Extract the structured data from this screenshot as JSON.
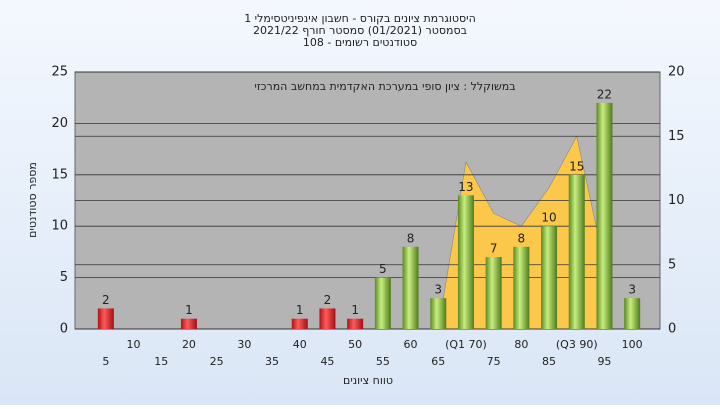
{
  "chart_data": {
    "type": "bar",
    "title": [
      "היסטוגרמת ציונים בקורס - חשבון אינפיניטסימלי 1",
      "בסמסטר (01/2021) סמסטר חורף 2021/22",
      "סטודנטים רשומים - 108"
    ],
    "annotation": "במשוקלל : ציון סופי במערכת האקדמית במחשב המרכזי",
    "x_label": "טווח ציונים",
    "y_label": "מספר סטודנטים",
    "categories": [
      "5",
      "10",
      "15",
      "20",
      "25",
      "30",
      "35",
      "40",
      "45",
      "50",
      "55",
      "60",
      "65",
      "(Q1 70)",
      "75",
      "80",
      "85",
      "(Q3 90)",
      "95",
      "100"
    ],
    "pass_from": 55,
    "fail_color": "#e0262a",
    "pass_color": "#8cc63f",
    "area_color": "#fcc84c",
    "series": [
      {
        "values": [
          2,
          0,
          0,
          1,
          0,
          0,
          0,
          1,
          2,
          1,
          5,
          8,
          3,
          13,
          7,
          8,
          10,
          15,
          22,
          3
        ]
      },
      {
        "axis": "y2",
        "values": [
          null,
          null,
          null,
          null,
          null,
          null,
          null,
          null,
          null,
          null,
          null,
          null,
          0,
          13,
          9,
          8,
          11,
          15,
          5,
          null
        ]
      }
    ],
    "ylim": [
      0,
      25
    ],
    "yticks": [
      0,
      5,
      10,
      15,
      20,
      25
    ],
    "y2lim": [
      0,
      20
    ],
    "y2ticks": [
      0,
      5,
      10,
      15,
      20
    ],
    "grid": true
  }
}
